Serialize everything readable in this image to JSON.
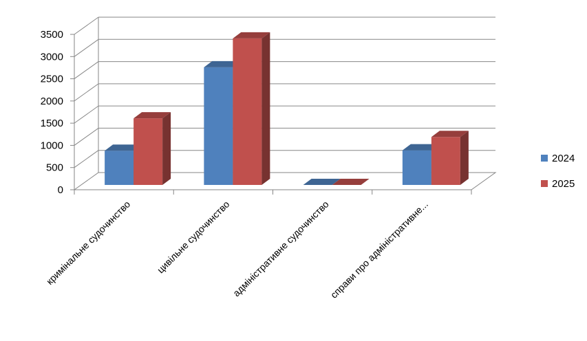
{
  "chart_data": {
    "type": "bar",
    "title": "",
    "xlabel": "",
    "ylabel": "",
    "categories": [
      "кримінальне судочинство",
      "цивільне судочинство",
      "адміністративне судочинство",
      "справи про адміністративне..."
    ],
    "series": [
      {
        "name": "2024",
        "color": "#4f81bd",
        "values": [
          770,
          2650,
          0,
          780
        ]
      },
      {
        "name": "2025",
        "color": "#c0504d",
        "values": [
          1500,
          3300,
          0,
          1080
        ]
      }
    ],
    "yticks": [
      "0",
      "500",
      "1000",
      "1500",
      "2000",
      "2500",
      "3000",
      "3500"
    ],
    "ylim": [
      0,
      3500
    ],
    "grid": true,
    "style": "3d-clustered-column",
    "legend_position": "right"
  }
}
